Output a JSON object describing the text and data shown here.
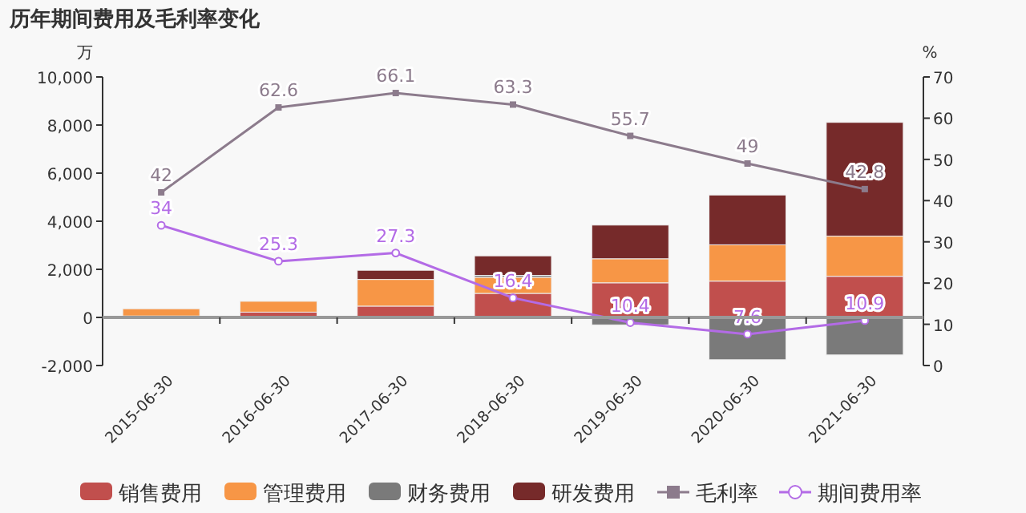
{
  "chart_data": {
    "type": "bar",
    "title": "历年期间费用及毛利率变化",
    "ylabel": "万",
    "y2label": "%",
    "categories": [
      "2015-06-30",
      "2016-06-30",
      "2017-06-30",
      "2018-06-30",
      "2019-06-30",
      "2020-06-30",
      "2021-06-30"
    ],
    "stacked": true,
    "series": [
      {
        "name": "销售费用",
        "color": "#c14f4d",
        "values": [
          60,
          220,
          470,
          1000,
          1440,
          1510,
          1710
        ]
      },
      {
        "name": "管理费用",
        "color": "#f79646",
        "values": [
          300,
          450,
          1110,
          670,
          1000,
          1510,
          1670
        ]
      },
      {
        "name": "财务费用",
        "color": "#7a7a7a",
        "values": [
          0,
          0,
          0,
          80,
          -310,
          -1760,
          -1560
        ]
      },
      {
        "name": "研发费用",
        "color": "#762a2a",
        "values": [
          0,
          0,
          380,
          810,
          1400,
          2070,
          4730
        ]
      },
      {
        "name": "毛利率",
        "type": "line",
        "axis": "y2",
        "color": "#8c7b8c",
        "marker": "square",
        "values": [
          42,
          62.6,
          66.1,
          63.3,
          55.7,
          49,
          42.8
        ],
        "value_labels": [
          "42",
          "62.6",
          "66.1",
          "63.3",
          "55.7",
          "49",
          "42.8"
        ]
      },
      {
        "name": "期间费用率",
        "type": "line",
        "axis": "y2",
        "color": "#b36be6",
        "marker": "circle",
        "values": [
          34,
          25.3,
          27.3,
          16.4,
          10.4,
          7.6,
          10.9
        ],
        "value_labels": [
          "34",
          "25.3",
          "27.3",
          "16.4",
          "10.4",
          "7.6",
          "10.9"
        ]
      }
    ],
    "ylim": [
      -2000,
      10000
    ],
    "yticks": [
      {
        "value": -2000,
        "label": "-2,000"
      },
      0,
      {
        "value": 2000,
        "label": "2,000"
      },
      {
        "value": 4000,
        "label": "4,000"
      },
      {
        "value": 6000,
        "label": "6,000"
      },
      {
        "value": 8000,
        "label": "8,000"
      },
      {
        "value": 10000,
        "label": "10,000"
      }
    ],
    "y2lim": [
      0,
      70
    ],
    "y2ticks": [
      0,
      10,
      20,
      30,
      40,
      50,
      60,
      70
    ],
    "legend": "bottom"
  }
}
